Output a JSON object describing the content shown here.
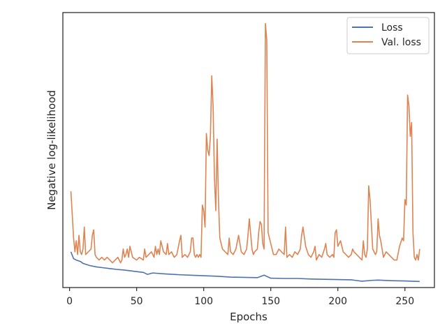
{
  "chart_data": {
    "type": "line",
    "title": "",
    "xlabel": "Epochs",
    "ylabel": "Negative log-likelihood",
    "xlim": [
      -5,
      272
    ],
    "ylim": [
      0,
      100
    ],
    "xticks": [
      0,
      50,
      100,
      150,
      200,
      250
    ],
    "yticks_visible": false,
    "grid": false,
    "legend_position": "top-right",
    "series": [
      {
        "name": "Loss",
        "color": "#4c72b0",
        "x": [
          1,
          3,
          5,
          8,
          10,
          15,
          20,
          25,
          30,
          35,
          40,
          45,
          50,
          55,
          58,
          62,
          70,
          80,
          90,
          100,
          110,
          120,
          130,
          140,
          145,
          150,
          160,
          170,
          180,
          190,
          200,
          210,
          218,
          225,
          230,
          240,
          250,
          255,
          261
        ],
        "values": [
          13.0,
          10.5,
          10.0,
          9.5,
          8.8,
          8.0,
          7.5,
          7.2,
          6.9,
          6.6,
          6.4,
          6.1,
          5.8,
          5.5,
          4.8,
          5.3,
          5.0,
          4.7,
          4.5,
          4.3,
          4.1,
          3.8,
          3.7,
          3.6,
          4.5,
          3.4,
          3.3,
          3.3,
          3.1,
          3.0,
          2.9,
          2.8,
          2.3,
          2.6,
          2.7,
          2.5,
          2.4,
          2.3,
          2.2
        ]
      },
      {
        "name": "Val. loss",
        "color": "#dd8452",
        "x": [
          1,
          3,
          4,
          5,
          6,
          7,
          8,
          9,
          10,
          11,
          12,
          14,
          16,
          17,
          18,
          19,
          20,
          22,
          24,
          26,
          28,
          30,
          32,
          34,
          36,
          38,
          39,
          40,
          41,
          42,
          43,
          44,
          45,
          47,
          50,
          52,
          55,
          56,
          57,
          59,
          61,
          63,
          64,
          65,
          66,
          67,
          68,
          70,
          72,
          73,
          74,
          76,
          78,
          80,
          82,
          83,
          84,
          86,
          88,
          90,
          91,
          92,
          93,
          94,
          95,
          96,
          97,
          98,
          99,
          100,
          101,
          102,
          103,
          104,
          105,
          106,
          107,
          108,
          109,
          110,
          111,
          112,
          114,
          116,
          118,
          119,
          120,
          122,
          124,
          126,
          128,
          130,
          132,
          133,
          134,
          136,
          137,
          138,
          140,
          141,
          142,
          143,
          144,
          145,
          146,
          147,
          148,
          150,
          152,
          154,
          156,
          158,
          160,
          161,
          162,
          164,
          166,
          168,
          170,
          172,
          173,
          174,
          176,
          178,
          180,
          182,
          183,
          184,
          186,
          188,
          190,
          191,
          192,
          194,
          196,
          197,
          198,
          199,
          200,
          202,
          204,
          206,
          208,
          210,
          211,
          212,
          214,
          216,
          218,
          219,
          220,
          221,
          222,
          223,
          224,
          226,
          228,
          229,
          230,
          231,
          232,
          234,
          236,
          238,
          240,
          242,
          244,
          246,
          248,
          249,
          250,
          251,
          252,
          253,
          254,
          255,
          256,
          257,
          258,
          259,
          260,
          261
        ],
        "values": [
          35,
          18,
          13,
          17,
          12,
          19,
          13,
          12,
          14,
          22,
          12,
          13,
          14,
          19,
          21,
          12,
          11,
          10,
          11,
          10,
          11,
          10,
          9,
          10,
          11,
          9,
          10,
          14,
          11,
          12,
          14,
          11,
          15,
          11,
          10,
          11,
          10,
          14,
          11,
          12,
          13,
          11,
          15,
          12,
          14,
          12,
          17,
          13,
          12,
          16,
          12,
          13,
          11,
          12,
          17,
          19,
          11,
          12,
          11,
          13,
          18,
          18,
          12,
          11,
          12,
          11,
          12,
          11,
          30,
          28,
          22,
          56,
          50,
          48,
          55,
          77,
          66,
          40,
          28,
          54,
          32,
          18,
          14,
          13,
          12,
          18,
          13,
          12,
          14,
          19,
          13,
          12,
          14,
          19,
          25,
          14,
          12,
          13,
          14,
          20,
          24,
          23,
          16,
          14,
          96,
          90,
          20,
          16,
          12,
          12,
          14,
          13,
          12,
          22,
          11,
          12,
          11,
          13,
          12,
          14,
          19,
          22,
          15,
          12,
          11,
          13,
          15,
          10,
          12,
          11,
          14,
          16,
          12,
          11,
          12,
          11,
          20,
          21,
          15,
          17,
          13,
          12,
          11,
          12,
          14,
          13,
          12,
          11,
          10,
          17,
          12,
          11,
          14,
          37,
          32,
          14,
          12,
          13,
          25,
          19,
          17,
          11,
          13,
          12,
          11,
          10,
          10,
          15,
          18,
          17,
          32,
          30,
          70,
          66,
          55,
          60,
          20,
          11,
          10,
          12,
          10,
          14
        ]
      }
    ]
  }
}
